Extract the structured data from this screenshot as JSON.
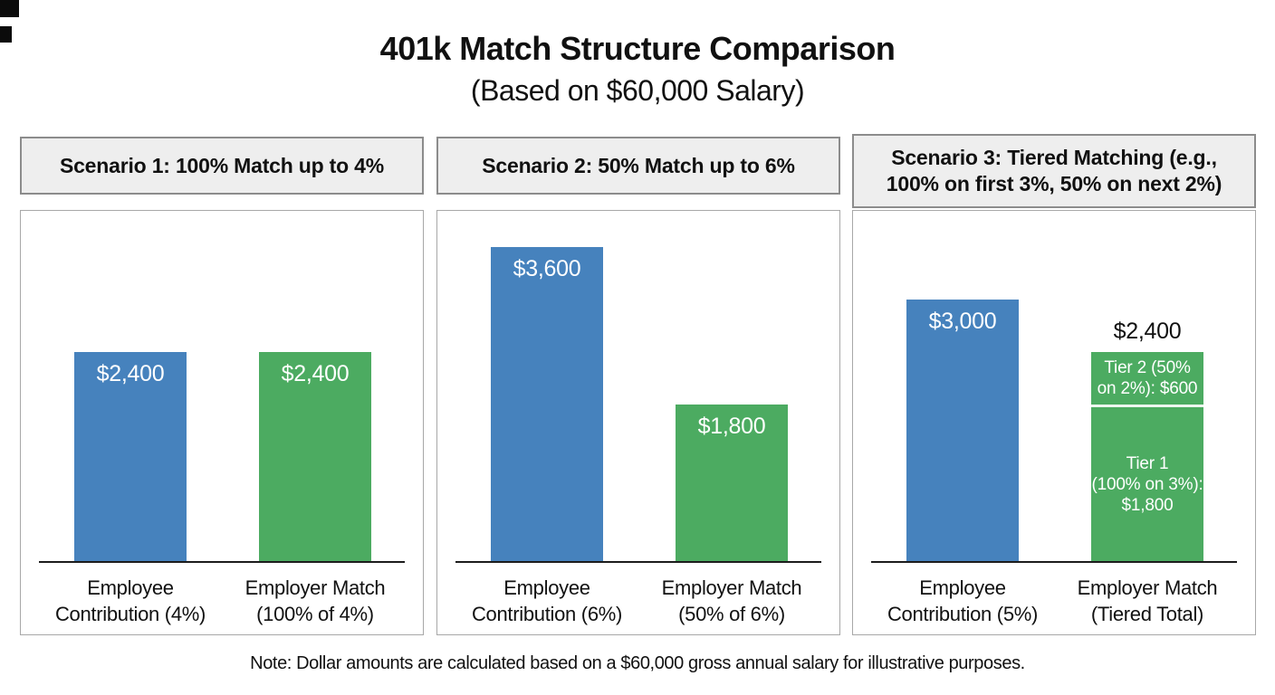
{
  "page": {
    "title": "401k Match Structure Comparison",
    "subtitle": "(Based on $60,000 Salary)",
    "note": "Note: Dollar amounts are calculated based on a $60,000 gross annual salary for illustrative purposes."
  },
  "colors": {
    "employee_bar_blue": "#4682bd",
    "employer_bar_green": "#4cab61",
    "header_background": "#eeeeee",
    "header_border": "#8c8c8c",
    "panel_border": "#a8a8a8",
    "axis_line": "#1c1c1c",
    "bar_value_text": "#ffffff",
    "body_text": "#111111"
  },
  "chart_data": [
    {
      "type": "bar",
      "title": "Scenario 1: 100% Match up to 4%",
      "categories": [
        "Employee Contribution (4%)",
        "Employer Match (100% of 4%)"
      ],
      "values": [
        2400,
        2400
      ],
      "data_labels": [
        "$2,400",
        "$2,400"
      ],
      "ylim": [
        0,
        4000
      ],
      "grid": false,
      "legend": false,
      "bars": [
        {
          "category": "Employee\nContribution (4%)",
          "value": 2400,
          "label": "$2,400",
          "color": "#4682bd"
        },
        {
          "category": "Employer Match\n(100% of 4%)",
          "value": 2400,
          "label": "$2,400",
          "color": "#4cab61"
        }
      ]
    },
    {
      "type": "bar",
      "title": "Scenario 2: 50% Match up to 6%",
      "categories": [
        "Employee Contribution (6%)",
        "Employer Match (50% of 6%)"
      ],
      "values": [
        3600,
        1800
      ],
      "data_labels": [
        "$3,600",
        "$1,800"
      ],
      "ylim": [
        0,
        4000
      ],
      "grid": false,
      "legend": false,
      "bars": [
        {
          "category": "Employee\nContribution (6%)",
          "value": 3600,
          "label": "$3,600",
          "color": "#4682bd"
        },
        {
          "category": "Employer Match\n(50% of 6%)",
          "value": 1800,
          "label": "$1,800",
          "color": "#4cab61"
        }
      ]
    },
    {
      "type": "bar",
      "title": "Scenario 3: Tiered Matching (e.g.,\n100% on first 3%, 50% on next 2%)",
      "categories": [
        "Employee Contribution (5%)",
        "Employer Match (Tiered Total)"
      ],
      "values": [
        3000,
        2400
      ],
      "data_labels": [
        "$3,000",
        "$2,400"
      ],
      "ylim": [
        0,
        4000
      ],
      "grid": false,
      "legend": false,
      "bars": [
        {
          "category": "Employee\nContribution (5%)",
          "value": 3000,
          "label": "$3,000",
          "color": "#4682bd"
        },
        {
          "category": "Employer Match\n(Tiered Total)",
          "value": 2400,
          "total_label": "$2,400",
          "stacked": true,
          "segments": [
            {
              "name": "Tier 2 (50% on 2%)",
              "value": 600,
              "label": "Tier 2 (50%\non 2%): $600",
              "color": "#4cab61"
            },
            {
              "name": "Tier 1 (100% on 3%)",
              "value": 1800,
              "label": "Tier 1\n(100% on 3%):\n$1,800",
              "color": "#4cab61"
            }
          ]
        }
      ]
    }
  ]
}
